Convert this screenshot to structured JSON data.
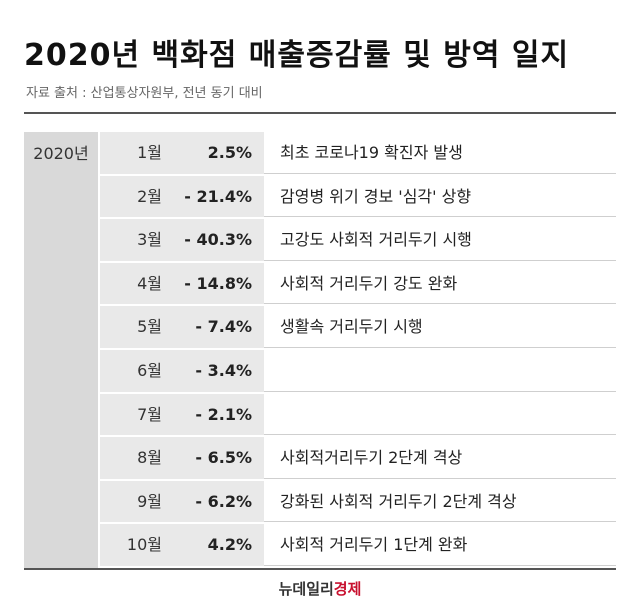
{
  "title": "2020년 백화점 매출증감률 및 방역 일지",
  "source": "자료 출처 : 산업통상자원부, 전년 동기 대비",
  "logo": {
    "part1": "뉴데일리",
    "part2": "경제",
    "color_dark": "#333333",
    "color_red": "#c8102e"
  },
  "chart_data": {
    "type": "table",
    "year": "2020년",
    "columns": [
      "월",
      "매출증감률",
      "방역 일지"
    ],
    "rows": [
      {
        "month": "1월",
        "change": "2.5%",
        "value": 2.5,
        "event": "최초 코로나19 확진자 발생"
      },
      {
        "month": "2월",
        "change": "- 21.4%",
        "value": -21.4,
        "event": "감영병 위기 경보 '심각' 상향"
      },
      {
        "month": "3월",
        "change": "- 40.3%",
        "value": -40.3,
        "event": "고강도 사회적 거리두기 시행"
      },
      {
        "month": "4월",
        "change": "- 14.8%",
        "value": -14.8,
        "event": "사회적 거리두기 강도 완화"
      },
      {
        "month": "5월",
        "change": "- 7.4%",
        "value": -7.4,
        "event": "생활속 거리두기 시행"
      },
      {
        "month": "6월",
        "change": "- 3.4%",
        "value": -3.4,
        "event": ""
      },
      {
        "month": "7월",
        "change": "- 2.1%",
        "value": -2.1,
        "event": ""
      },
      {
        "month": "8월",
        "change": "- 6.5%",
        "value": -6.5,
        "event": "사회적거리두기 2단계 격상"
      },
      {
        "month": "9월",
        "change": "- 6.2%",
        "value": -6.2,
        "event": "강화된 사회적 거리두기 2단계 격상"
      },
      {
        "month": "10월",
        "change": "4.2%",
        "value": 4.2,
        "event": "사회적 거리두기 1단계 완화"
      }
    ]
  }
}
